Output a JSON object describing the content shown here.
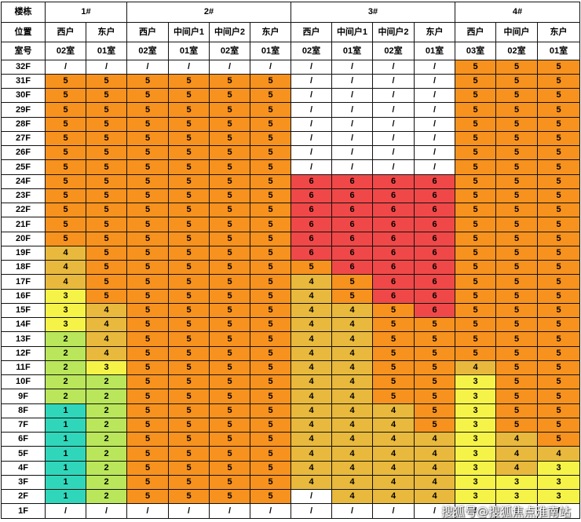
{
  "chart_data": {
    "type": "table",
    "corner_labels": [
      "楼栋",
      "位置",
      "室号"
    ],
    "buildings": [
      {
        "name": "1#",
        "units": [
          {
            "position": "西户",
            "room": "02室"
          },
          {
            "position": "东户",
            "room": "01室"
          }
        ]
      },
      {
        "name": "2#",
        "units": [
          {
            "position": "西户",
            "room": "02室"
          },
          {
            "position": "中间户1",
            "room": "01室"
          },
          {
            "position": "中间户2",
            "room": "02室"
          },
          {
            "position": "东户",
            "room": "01室"
          }
        ]
      },
      {
        "name": "3#",
        "units": [
          {
            "position": "西户",
            "room": "02室"
          },
          {
            "position": "中间户1",
            "room": "01室"
          },
          {
            "position": "中间户2",
            "room": "02室"
          },
          {
            "position": "东户",
            "room": "01室"
          }
        ]
      },
      {
        "name": "4#",
        "units": [
          {
            "position": "西户",
            "room": "03室"
          },
          {
            "position": "中间户",
            "room": "02室"
          },
          {
            "position": "东户",
            "room": "01室"
          }
        ]
      }
    ],
    "rows": [
      {
        "floor": "32F",
        "values": [
          "/",
          "/",
          "/",
          "/",
          "/",
          "/",
          "/",
          "/",
          "/",
          "/",
          5,
          5,
          5
        ]
      },
      {
        "floor": "31F",
        "values": [
          5,
          5,
          5,
          5,
          5,
          5,
          "/",
          "/",
          "/",
          "/",
          5,
          5,
          5
        ]
      },
      {
        "floor": "30F",
        "values": [
          5,
          5,
          5,
          5,
          5,
          5,
          "/",
          "/",
          "/",
          "/",
          5,
          5,
          5
        ]
      },
      {
        "floor": "29F",
        "values": [
          5,
          5,
          5,
          5,
          5,
          5,
          "/",
          "/",
          "/",
          "/",
          5,
          5,
          5
        ]
      },
      {
        "floor": "28F",
        "values": [
          5,
          5,
          5,
          5,
          5,
          5,
          "/",
          "/",
          "/",
          "/",
          5,
          5,
          5
        ]
      },
      {
        "floor": "27F",
        "values": [
          5,
          5,
          5,
          5,
          5,
          5,
          "/",
          "/",
          "/",
          "/",
          5,
          5,
          5
        ]
      },
      {
        "floor": "26F",
        "values": [
          5,
          5,
          5,
          5,
          5,
          5,
          "/",
          "/",
          "/",
          "/",
          5,
          5,
          5
        ]
      },
      {
        "floor": "25F",
        "values": [
          5,
          5,
          5,
          5,
          5,
          5,
          "/",
          "/",
          "/",
          "/",
          5,
          5,
          5
        ]
      },
      {
        "floor": "24F",
        "values": [
          5,
          5,
          5,
          5,
          5,
          5,
          6,
          6,
          6,
          6,
          5,
          5,
          5
        ]
      },
      {
        "floor": "23F",
        "values": [
          5,
          5,
          5,
          5,
          5,
          5,
          6,
          6,
          6,
          6,
          5,
          5,
          5
        ]
      },
      {
        "floor": "22F",
        "values": [
          5,
          5,
          5,
          5,
          5,
          5,
          6,
          6,
          6,
          6,
          5,
          5,
          5
        ]
      },
      {
        "floor": "21F",
        "values": [
          5,
          5,
          5,
          5,
          5,
          5,
          6,
          6,
          6,
          6,
          5,
          5,
          5
        ]
      },
      {
        "floor": "20F",
        "values": [
          5,
          5,
          5,
          5,
          5,
          5,
          6,
          6,
          6,
          6,
          5,
          5,
          5
        ]
      },
      {
        "floor": "19F",
        "values": [
          4,
          5,
          5,
          5,
          5,
          5,
          6,
          6,
          6,
          6,
          5,
          5,
          5
        ]
      },
      {
        "floor": "18F",
        "values": [
          4,
          5,
          5,
          5,
          5,
          5,
          5,
          6,
          6,
          6,
          5,
          5,
          5
        ]
      },
      {
        "floor": "17F",
        "values": [
          4,
          5,
          5,
          5,
          5,
          5,
          4,
          5,
          6,
          6,
          5,
          5,
          5
        ]
      },
      {
        "floor": "16F",
        "values": [
          3,
          5,
          5,
          5,
          5,
          5,
          4,
          5,
          6,
          6,
          5,
          5,
          5
        ]
      },
      {
        "floor": "15F",
        "values": [
          3,
          4,
          5,
          5,
          5,
          5,
          4,
          4,
          5,
          6,
          5,
          5,
          5
        ]
      },
      {
        "floor": "14F",
        "values": [
          3,
          4,
          5,
          5,
          5,
          5,
          4,
          4,
          5,
          5,
          5,
          5,
          5
        ]
      },
      {
        "floor": "13F",
        "values": [
          2,
          4,
          5,
          5,
          5,
          5,
          4,
          4,
          5,
          5,
          5,
          5,
          5
        ]
      },
      {
        "floor": "12F",
        "values": [
          2,
          4,
          5,
          5,
          5,
          5,
          4,
          4,
          5,
          5,
          5,
          5,
          5
        ]
      },
      {
        "floor": "11F",
        "values": [
          2,
          3,
          5,
          5,
          5,
          5,
          4,
          4,
          5,
          5,
          4,
          5,
          5
        ]
      },
      {
        "floor": "10F",
        "values": [
          2,
          2,
          5,
          5,
          5,
          5,
          4,
          4,
          5,
          5,
          3,
          5,
          5
        ]
      },
      {
        "floor": "9F",
        "values": [
          2,
          2,
          5,
          5,
          5,
          5,
          4,
          4,
          5,
          5,
          3,
          5,
          5
        ]
      },
      {
        "floor": "8F",
        "values": [
          1,
          2,
          5,
          5,
          5,
          5,
          4,
          4,
          4,
          5,
          3,
          5,
          5
        ]
      },
      {
        "floor": "7F",
        "values": [
          1,
          2,
          5,
          5,
          5,
          5,
          4,
          4,
          4,
          5,
          3,
          5,
          5
        ]
      },
      {
        "floor": "6F",
        "values": [
          1,
          2,
          5,
          5,
          5,
          5,
          4,
          4,
          4,
          4,
          3,
          4,
          5
        ]
      },
      {
        "floor": "5F",
        "values": [
          1,
          2,
          5,
          5,
          5,
          5,
          4,
          4,
          4,
          4,
          3,
          4,
          4
        ]
      },
      {
        "floor": "4F",
        "values": [
          1,
          2,
          5,
          5,
          5,
          5,
          4,
          4,
          4,
          4,
          3,
          4,
          3
        ]
      },
      {
        "floor": "3F",
        "values": [
          1,
          2,
          5,
          5,
          5,
          5,
          4,
          4,
          4,
          4,
          3,
          3,
          3
        ]
      },
      {
        "floor": "2F",
        "values": [
          1,
          2,
          5,
          5,
          5,
          5,
          "/",
          4,
          4,
          4,
          3,
          3,
          3
        ]
      },
      {
        "floor": "1F",
        "values": [
          "/",
          "/",
          "/",
          "/",
          "/",
          "/",
          "/",
          "/",
          "/",
          "/",
          "/",
          "/",
          "/"
        ]
      }
    ]
  },
  "colors": {
    "cell_by_value": {
      "1": "#30D6BA",
      "2": "#B9E65A",
      "3": "#F6F348",
      "4": "#E8B93C",
      "5": "#F7921E",
      "6": "#F04848",
      "/": "#FFFFFF"
    },
    "header_background": "#FFFFFF",
    "grid_line": "#111111",
    "text": "#000000"
  },
  "watermark": "搜狐号@搜狐焦点淮南站"
}
